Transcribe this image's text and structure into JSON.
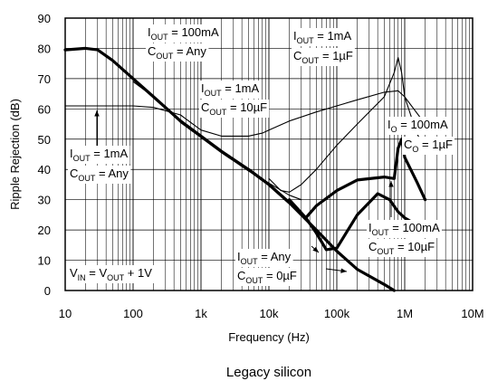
{
  "chart_data": {
    "type": "line",
    "xlabel": "Frequency (Hz)",
    "ylabel": "Ripple Rejection (dB)",
    "xscale": "log",
    "xlim": [
      10,
      10000000
    ],
    "ylim": [
      0,
      90
    ],
    "x_ticks": [
      "10",
      "100",
      "1k",
      "10k",
      "100k",
      "1M",
      "10M"
    ],
    "y_ticks": [
      "0",
      "10",
      "20",
      "30",
      "40",
      "50",
      "60",
      "70",
      "80",
      "90"
    ],
    "grid": true,
    "caption": "Legacy silicon",
    "series": [
      {
        "name": "IOUT = 100mA, COUT = Any",
        "width": "thick",
        "x": [
          10,
          20,
          30,
          50,
          100,
          200,
          500,
          1000,
          2000,
          5000,
          10000,
          20000,
          30000,
          35000
        ],
        "y": [
          79.5,
          80,
          79.5,
          76,
          70,
          64,
          56,
          51,
          46,
          40,
          35,
          29,
          25.5,
          24
        ]
      },
      {
        "name": "IOUT = 1mA, COUT = 10µF",
        "width": "thin",
        "x": [
          10,
          100,
          200,
          500,
          1000,
          2000,
          3000,
          5000,
          8000,
          10000,
          20000,
          50000,
          100000,
          200000,
          500000,
          800000,
          1000000,
          2000000
        ],
        "y": [
          61,
          61,
          60.5,
          58,
          53,
          51,
          51,
          51,
          52,
          53,
          56,
          59,
          61,
          63,
          65.5,
          66,
          64,
          55
        ]
      },
      {
        "name": "IOUT = 1mA, COUT = 1µF",
        "width": "thin",
        "x": [
          10000,
          15000,
          20000,
          30000,
          50000,
          100000,
          200000,
          500000,
          700000,
          800000,
          900000,
          1000000,
          1500000,
          2000000
        ],
        "y": [
          37,
          33,
          32.5,
          35,
          40,
          48,
          55,
          64,
          72,
          77,
          72,
          64,
          52,
          47
        ]
      },
      {
        "name": "IOUT = 1mA, COUT = Any",
        "width": "thin",
        "x": [
          100,
          200,
          500,
          1000,
          2000,
          5000,
          10000,
          20000,
          30000
        ],
        "y": [
          69,
          64,
          55.5,
          50.5,
          45.5,
          39.5,
          35.5,
          31.5,
          30
        ]
      },
      {
        "name": "IOUT = Any, COUT = 0µF",
        "width": "thick",
        "x": [
          5000,
          10000,
          20000,
          50000,
          100000,
          200000,
          500000,
          700000
        ],
        "y": [
          40,
          35,
          29,
          20,
          13,
          7,
          2,
          0
        ]
      },
      {
        "name": "IOUT = 100mA, COUT = 10µF",
        "width": "thick",
        "x": [
          20000,
          35000,
          50000,
          70000,
          100000,
          200000,
          400000,
          600000,
          800000,
          1000000,
          2000000
        ],
        "y": [
          30,
          24,
          19,
          13.5,
          14,
          25,
          32,
          30,
          26,
          24,
          20
        ]
      },
      {
        "name": "IO = 100mA, CO = 1µF",
        "width": "thick",
        "x": [
          35000,
          50000,
          100000,
          200000,
          500000,
          700000,
          800000,
          900000,
          1000000,
          1500000,
          2000000
        ],
        "y": [
          24,
          28,
          33,
          36.5,
          37.5,
          37,
          47,
          50,
          44,
          36,
          30
        ]
      }
    ],
    "annotations": [
      {
        "main": "I",
        "sub": "OUT",
        "rest": " = 100mA"
      },
      {
        "main": "C",
        "sub": "OUT",
        "rest": " = Any"
      },
      {
        "main": "I",
        "sub": "OUT",
        "rest": " = 1mA"
      },
      {
        "main": "C",
        "sub": "OUT",
        "rest": " = 1µF"
      },
      {
        "main": "I",
        "sub": "OUT",
        "rest": " = 1mA"
      },
      {
        "main": "C",
        "sub": "OUT",
        "rest": " = 10µF"
      },
      {
        "main": "I",
        "sub": "O",
        "rest": " = 100mA"
      },
      {
        "main": "C",
        "sub": "O",
        "rest": " = 1µF"
      },
      {
        "main": "I",
        "sub": "OUT",
        "rest": " = 1mA"
      },
      {
        "main": "C",
        "sub": "OUT",
        "rest": " = Any"
      },
      {
        "main": "I",
        "sub": "OUT",
        "rest": " = 100mA"
      },
      {
        "main": "C",
        "sub": "OUT",
        "rest": " = 10µF"
      },
      {
        "main": "I",
        "sub": "OUT",
        "rest": " = Any"
      },
      {
        "main": "C",
        "sub": "OUT",
        "rest": " = 0µF"
      },
      {
        "main": "V",
        "sub": "IN",
        "rest": " = V",
        "sub2": "OUT",
        "rest2": " + 1V"
      }
    ]
  }
}
